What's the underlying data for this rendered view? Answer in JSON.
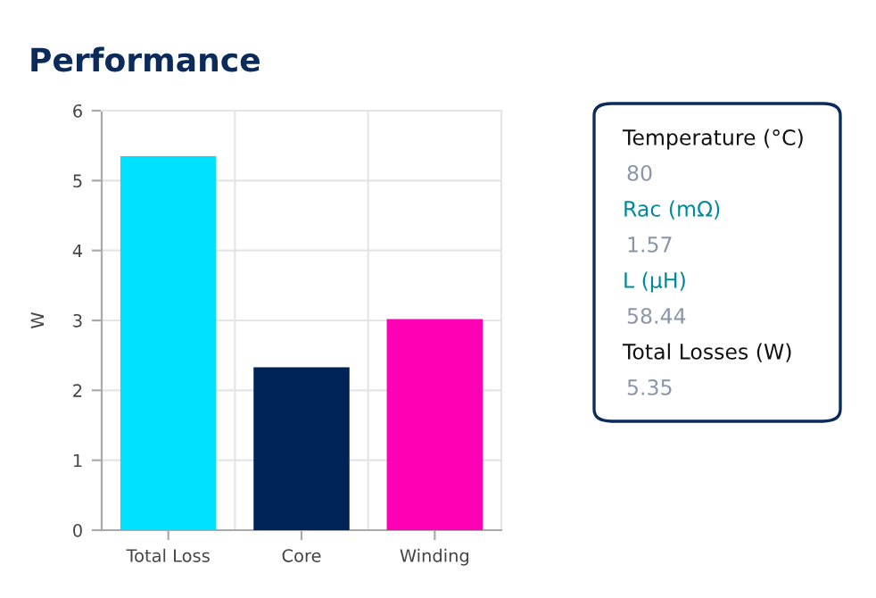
{
  "chart_data": {
    "type": "bar",
    "title": "Performance",
    "ylabel": "W",
    "categories": [
      "Total Loss",
      "Core",
      "Winding"
    ],
    "values": [
      5.35,
      2.33,
      3.02
    ],
    "colors": [
      "#00e1ff",
      "#002357",
      "#ff00b4"
    ],
    "ylim": [
      0,
      6
    ],
    "yticks": [
      0,
      1,
      2,
      3,
      4,
      5,
      6
    ],
    "grid": true,
    "annotations": [
      "Temperature (°C)",
      "80",
      "Rac (mΩ)",
      "1.57",
      "L (μH)",
      "58.44",
      "Total Losses (W)",
      "5.35"
    ]
  }
}
